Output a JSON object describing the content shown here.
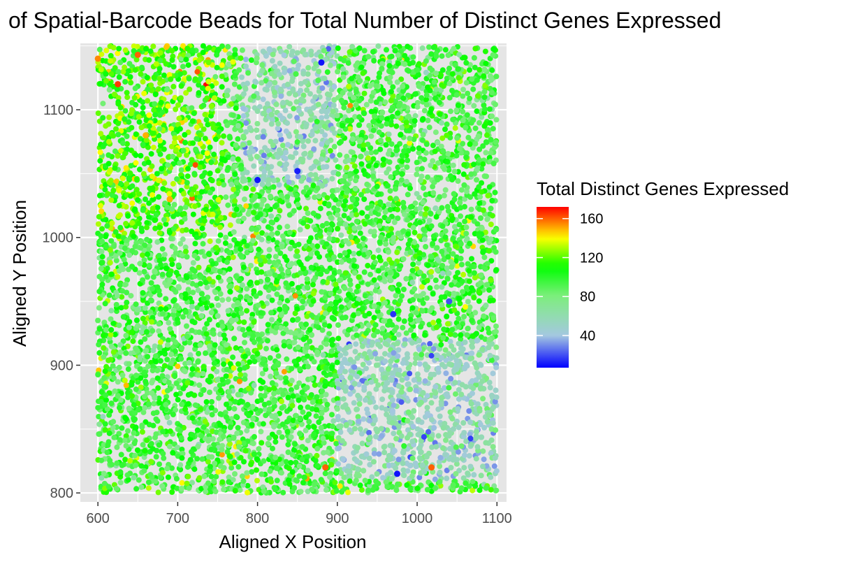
{
  "chart_data": {
    "type": "scatter",
    "title": "of Spatial-Barcode Beads for Total Number of Distinct Genes Expressed",
    "xlabel": "Aligned X Position",
    "ylabel": "Aligned Y Position",
    "xlim": [
      578,
      1112
    ],
    "ylim": [
      793,
      1152
    ],
    "x_ticks": [
      600,
      700,
      800,
      900,
      1000,
      1100
    ],
    "x_tick_labels": [
      "600",
      "700",
      "800",
      "900",
      "1000",
      "1100"
    ],
    "y_ticks": [
      800,
      900,
      1000,
      1100
    ],
    "y_tick_labels": [
      "800",
      "900",
      "1000",
      "1100"
    ],
    "x_range_points": [
      600,
      1100
    ],
    "y_range_points": [
      800,
      1150
    ],
    "grid": true,
    "panel_background": "#e5e5e5",
    "legend": {
      "title": "Total Distinct Genes Expressed",
      "placement": "right",
      "ticks": [
        40,
        80,
        120,
        160
      ],
      "tick_labels": [
        "40",
        "80",
        "120",
        "160"
      ],
      "limits": [
        7,
        172
      ],
      "colors": [
        "#0000ff",
        "#a4c8e0",
        "#7fee7f",
        "#00ff00",
        "#ffff00",
        "#ff0000"
      ],
      "color_stops_values": [
        7,
        40,
        80,
        110,
        140,
        172
      ]
    },
    "approx_point_count": 7000,
    "regions": [
      {
        "name": "high-expression upper-left",
        "x": [
          600,
          760
        ],
        "y": [
          1000,
          1150
        ],
        "typical_value": 115
      },
      {
        "name": "low-expression lower-right cluster",
        "x": [
          900,
          1100
        ],
        "y": [
          810,
          920
        ],
        "typical_value": 55
      },
      {
        "name": "low-expression upper-middle cluster",
        "x": [
          780,
          900
        ],
        "y": [
          1040,
          1150
        ],
        "typical_value": 60
      },
      {
        "name": "background",
        "x": [
          600,
          1100
        ],
        "y": [
          800,
          1150
        ],
        "typical_value": 95
      }
    ],
    "highlighted_points": [
      {
        "x": 800,
        "y": 1045,
        "value": 10
      },
      {
        "x": 850,
        "y": 1052,
        "value": 12
      },
      {
        "x": 880,
        "y": 1137,
        "value": 10
      },
      {
        "x": 970,
        "y": 940,
        "value": 15
      },
      {
        "x": 625,
        "y": 1120,
        "value": 165
      },
      {
        "x": 650,
        "y": 1143,
        "value": 160
      },
      {
        "x": 600,
        "y": 1140,
        "value": 155
      },
      {
        "x": 885,
        "y": 820,
        "value": 160
      },
      {
        "x": 1018,
        "y": 820,
        "value": 160
      },
      {
        "x": 690,
        "y": 1030,
        "value": 150
      },
      {
        "x": 660,
        "y": 1080,
        "value": 150
      },
      {
        "x": 1040,
        "y": 950,
        "value": 20
      },
      {
        "x": 975,
        "y": 815,
        "value": 10
      }
    ]
  }
}
